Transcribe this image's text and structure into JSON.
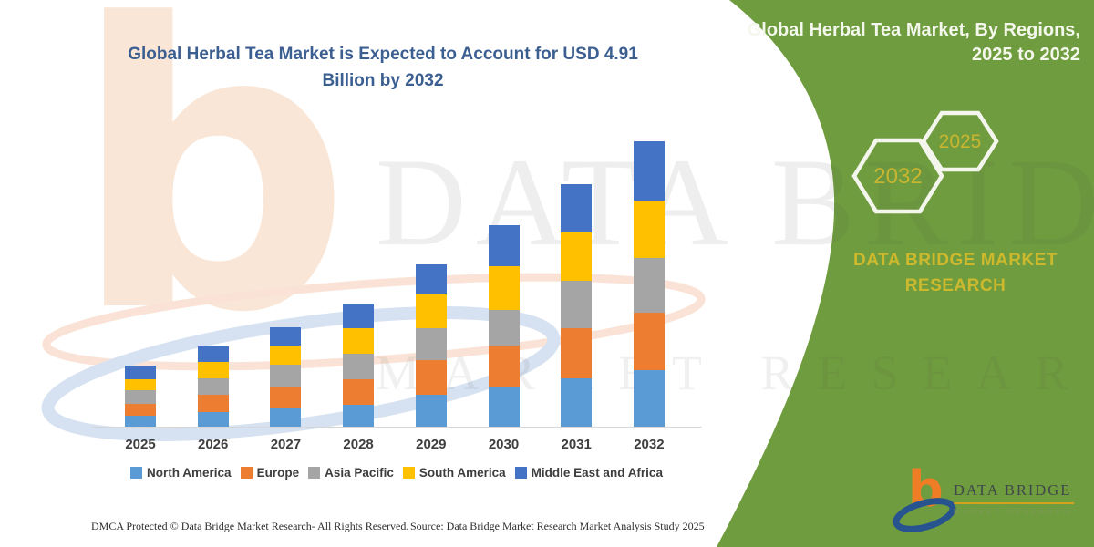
{
  "title": {
    "line1": "Global Herbal Tea Market is Expected to Account for USD 4.91",
    "line2": "Billion by 2032"
  },
  "side_panel": {
    "green": "#6f9c3e",
    "heading_line1": "Global Herbal Tea Market, By Regions,",
    "heading_line2": "2025 to 2032",
    "hexagons": [
      {
        "label": "2032"
      },
      {
        "label": "2025"
      }
    ],
    "brand_text": "DATA BRIDGE MARKET RESEARCH",
    "accent_yellow": "#c9b530"
  },
  "chart_data": {
    "type": "bar",
    "stacked": true,
    "unit": "USD Billion",
    "title": "Global Herbal Tea Market is Expected to Account for USD 4.91 Billion by 2032",
    "categories": [
      "2025",
      "2026",
      "2027",
      "2028",
      "2029",
      "2030",
      "2031",
      "2032"
    ],
    "series": [
      {
        "name": "North America",
        "color": "#5B9BD5",
        "values": [
          0.19,
          0.25,
          0.31,
          0.38,
          0.55,
          0.69,
          0.83,
          0.97
        ]
      },
      {
        "name": "Europe",
        "color": "#ED7D31",
        "values": [
          0.2,
          0.3,
          0.38,
          0.44,
          0.6,
          0.71,
          0.86,
          1.0
        ]
      },
      {
        "name": "Asia Pacific",
        "color": "#A5A5A5",
        "values": [
          0.24,
          0.28,
          0.38,
          0.44,
          0.55,
          0.61,
          0.82,
          0.94
        ]
      },
      {
        "name": "South America",
        "color": "#FFC000",
        "values": [
          0.19,
          0.28,
          0.33,
          0.44,
          0.57,
          0.75,
          0.83,
          0.99
        ]
      },
      {
        "name": "Middle East and Africa",
        "color": "#4472C4",
        "values": [
          0.24,
          0.27,
          0.31,
          0.42,
          0.52,
          0.71,
          0.83,
          1.01
        ]
      }
    ],
    "totals": [
      1.06,
      1.38,
      1.71,
      2.12,
      2.79,
      3.47,
      4.17,
      4.91
    ],
    "ylim": [
      0,
      5.2
    ],
    "grid": false,
    "legend_position": "bottom"
  },
  "watermark": {
    "mark": "b",
    "brand": "DATA BRIDGE",
    "sub": "MARKET RESEARCH"
  },
  "logo": {
    "mark": "b",
    "name": "DATA BRIDGE",
    "sub": "MARKET RESEARCH"
  },
  "footer": {
    "dmca": "DMCA Protected © Data Bridge Market Research-  All Rights Reserved.",
    "source": "Source: Data Bridge Market Research  Market Analysis Study 2025"
  }
}
